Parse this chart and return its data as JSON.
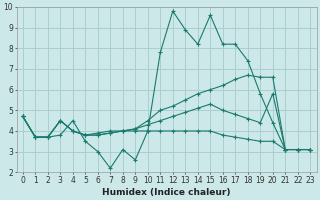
{
  "xlabel": "Humidex (Indice chaleur)",
  "xlim": [
    -0.5,
    23.5
  ],
  "ylim": [
    2,
    10
  ],
  "xticks": [
    0,
    1,
    2,
    3,
    4,
    5,
    6,
    7,
    8,
    9,
    10,
    11,
    12,
    13,
    14,
    15,
    16,
    17,
    18,
    19,
    20,
    21,
    22,
    23
  ],
  "yticks": [
    2,
    3,
    4,
    5,
    6,
    7,
    8,
    9,
    10
  ],
  "bg_color": "#cce8e8",
  "grid_color": "#aacfcf",
  "line_color": "#1a7a6e",
  "lines": [
    {
      "x": [
        0,
        1,
        2,
        3,
        4,
        5,
        6,
        7,
        8,
        9,
        10,
        11,
        12,
        13,
        14,
        15,
        16,
        17,
        18,
        19,
        20,
        21,
        22,
        23
      ],
      "y": [
        4.7,
        3.7,
        3.7,
        3.8,
        4.5,
        3.5,
        3.0,
        2.2,
        3.1,
        2.6,
        4.0,
        7.8,
        9.8,
        8.9,
        8.2,
        9.6,
        8.2,
        8.2,
        7.4,
        5.8,
        4.4,
        3.1,
        3.1,
        3.1
      ]
    },
    {
      "x": [
        0,
        1,
        2,
        3,
        4,
        5,
        6,
        7,
        8,
        9,
        10,
        11,
        12,
        13,
        14,
        15,
        16,
        17,
        18,
        19,
        20,
        21,
        22,
        23
      ],
      "y": [
        4.7,
        3.7,
        3.7,
        4.5,
        4.0,
        3.8,
        3.8,
        3.9,
        4.0,
        4.1,
        4.5,
        5.0,
        5.2,
        5.5,
        5.8,
        6.0,
        6.2,
        6.5,
        6.7,
        6.6,
        6.6,
        3.1,
        3.1,
        3.1
      ]
    },
    {
      "x": [
        0,
        1,
        2,
        3,
        4,
        5,
        6,
        7,
        8,
        9,
        10,
        11,
        12,
        13,
        14,
        15,
        16,
        17,
        18,
        19,
        20,
        21,
        22,
        23
      ],
      "y": [
        4.7,
        3.7,
        3.7,
        4.5,
        4.0,
        3.8,
        3.8,
        3.9,
        4.0,
        4.0,
        4.0,
        4.0,
        4.0,
        4.0,
        4.0,
        4.0,
        3.8,
        3.7,
        3.6,
        3.5,
        3.5,
        3.1,
        3.1,
        3.1
      ]
    },
    {
      "x": [
        0,
        1,
        2,
        3,
        4,
        5,
        6,
        7,
        8,
        9,
        10,
        11,
        12,
        13,
        14,
        15,
        16,
        17,
        18,
        19,
        20,
        21,
        22,
        23
      ],
      "y": [
        4.7,
        3.7,
        3.7,
        4.5,
        4.0,
        3.8,
        3.9,
        4.0,
        4.0,
        4.1,
        4.3,
        4.5,
        4.7,
        4.9,
        5.1,
        5.3,
        5.0,
        4.8,
        4.6,
        4.4,
        5.8,
        3.1,
        3.1,
        3.1
      ]
    }
  ]
}
